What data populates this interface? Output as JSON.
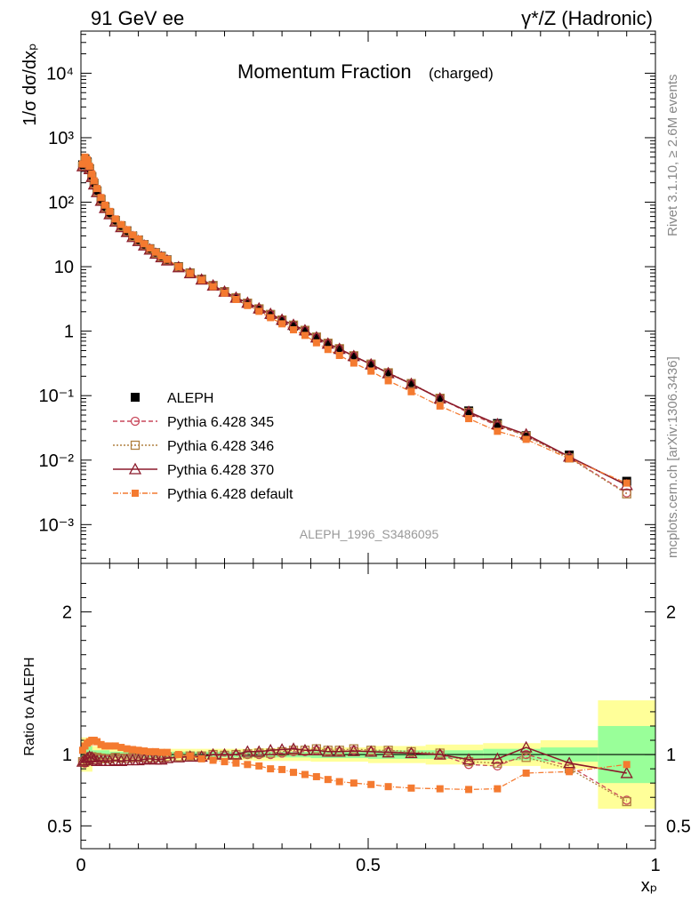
{
  "header": {
    "left": "91 GeV ee",
    "right": "γ*/Z (Hadronic)"
  },
  "side_labels": {
    "rivet": "Rivet 3.1.10, ≥ 2.6M events",
    "mcplots": "mcplots.cern.ch [arXiv:1306.3436]"
  },
  "chart_data": [
    {
      "type": "line",
      "title": "Momentum Fraction",
      "title_sub": "(charged)",
      "analysis_id": "ALEPH_1996_S3486095",
      "ylabel": "1/σ dσ/dx_p",
      "yscale": "log",
      "ylim": [
        0.00025,
        45000
      ],
      "xlim": [
        0,
        1
      ],
      "y_tick_labels": [
        "10⁻³",
        "10⁻²",
        "10⁻¹",
        "1",
        "10",
        "10²",
        "10³",
        "10⁴"
      ],
      "x": [
        0.003,
        0.007,
        0.011,
        0.015,
        0.019,
        0.023,
        0.028,
        0.035,
        0.042,
        0.05,
        0.06,
        0.07,
        0.08,
        0.09,
        0.1,
        0.11,
        0.12,
        0.13,
        0.14,
        0.15,
        0.17,
        0.19,
        0.21,
        0.23,
        0.25,
        0.27,
        0.29,
        0.31,
        0.33,
        0.35,
        0.37,
        0.39,
        0.41,
        0.43,
        0.45,
        0.475,
        0.505,
        0.535,
        0.575,
        0.625,
        0.675,
        0.725,
        0.775,
        0.85,
        0.95
      ],
      "series": [
        {
          "name": "ALEPH",
          "color": "#000000",
          "marker": "filled-square",
          "values": [
            380,
            470,
            420,
            330,
            250,
            195,
            150,
            110,
            85,
            68,
            52,
            43,
            36,
            30,
            26,
            22,
            19,
            16.5,
            14.5,
            12.8,
            10,
            8,
            6.4,
            5.1,
            4.1,
            3.3,
            2.7,
            2.2,
            1.8,
            1.45,
            1.2,
            1.0,
            0.78,
            0.63,
            0.52,
            0.4,
            0.3,
            0.22,
            0.15,
            0.09,
            0.058,
            0.037,
            0.024,
            0.012,
            0.0047
          ]
        },
        {
          "name": "Pythia 6.428 345",
          "color": "#c8475a",
          "marker": "open-circle",
          "dash": "5,3",
          "values": [
            360,
            440,
            400,
            320,
            245,
            190,
            146,
            107,
            82,
            66,
            51,
            42,
            35,
            29.3,
            25.3,
            21.4,
            18.5,
            16.1,
            14.1,
            12.5,
            9.8,
            7.9,
            6.3,
            5.05,
            4.05,
            3.27,
            2.7,
            2.2,
            1.8,
            1.47,
            1.22,
            1.02,
            0.8,
            0.64,
            0.53,
            0.41,
            0.305,
            0.224,
            0.152,
            0.09,
            0.054,
            0.034,
            0.024,
            0.011,
            0.0031
          ]
        },
        {
          "name": "Pythia 6.428 346",
          "color": "#b08040",
          "marker": "open-square",
          "dash": "2,2",
          "values": [
            360,
            445,
            405,
            322,
            246,
            191,
            147,
            107,
            82,
            66,
            51,
            42,
            35,
            29.4,
            25.4,
            21.5,
            18.6,
            16.2,
            14.2,
            12.6,
            9.85,
            7.95,
            6.35,
            5.08,
            4.08,
            3.3,
            2.72,
            2.22,
            1.82,
            1.49,
            1.24,
            1.03,
            0.81,
            0.65,
            0.535,
            0.415,
            0.308,
            0.226,
            0.154,
            0.091,
            0.055,
            0.035,
            0.0235,
            0.0108,
            0.003
          ]
        },
        {
          "name": "Pythia 6.428 370",
          "color": "#8b1a2b",
          "marker": "open-triangle",
          "dash": "",
          "values": [
            360,
            450,
            410,
            325,
            245,
            188,
            143,
            105,
            81,
            65,
            50,
            41,
            34.5,
            28.8,
            25,
            21.3,
            18.4,
            15.9,
            14,
            12.5,
            9.8,
            7.9,
            6.3,
            5.1,
            4.1,
            3.3,
            2.75,
            2.25,
            1.85,
            1.5,
            1.25,
            1.03,
            0.8,
            0.64,
            0.53,
            0.41,
            0.305,
            0.223,
            0.152,
            0.09,
            0.056,
            0.036,
            0.025,
            0.0113,
            0.0041
          ]
        },
        {
          "name": "Pythia 6.428 default",
          "color": "#f47a30",
          "marker": "filled-square-small",
          "dash": "6,2,1,2",
          "values": [
            390,
            500,
            455,
            360,
            275,
            214,
            163,
            118,
            90,
            72,
            55,
            45,
            37.5,
            31,
            26.8,
            22.6,
            19.4,
            16.8,
            14.7,
            13,
            10,
            7.9,
            6.2,
            4.9,
            3.9,
            3.1,
            2.5,
            2.03,
            1.62,
            1.3,
            1.05,
            0.86,
            0.66,
            0.52,
            0.42,
            0.32,
            0.24,
            0.17,
            0.115,
            0.069,
            0.044,
            0.028,
            0.021,
            0.0105,
            0.0044
          ]
        }
      ],
      "legend_position": "lower-left"
    },
    {
      "type": "line",
      "ylabel": "Ratio to ALEPH",
      "xlabel": "x_p",
      "xlim": [
        0,
        1
      ],
      "ylim": [
        0.34,
        2.34
      ],
      "x_tick_labels": [
        "0",
        "0.5",
        "1"
      ],
      "y_tick_labels": [
        "0.5",
        "1",
        "2"
      ],
      "reference_line": 1,
      "uncertainty_bands": {
        "green_color": "#99ff99",
        "yellow_color": "#ffff99",
        "x_edges": [
          0.0,
          0.02,
          0.05,
          0.1,
          0.2,
          0.3,
          0.4,
          0.5,
          0.6,
          0.7,
          0.8,
          0.9,
          1.0
        ],
        "green_half_width": [
          0.06,
          0.03,
          0.02,
          0.02,
          0.02,
          0.02,
          0.025,
          0.03,
          0.03,
          0.04,
          0.05,
          0.2
        ],
        "yellow_half_width": [
          0.12,
          0.06,
          0.04,
          0.04,
          0.04,
          0.045,
          0.05,
          0.06,
          0.07,
          0.08,
          0.1,
          0.38
        ]
      },
      "series": [
        {
          "name": "Pythia 6.428 345",
          "color": "#c8475a",
          "marker": "open-circle",
          "dash": "5,3",
          "values": [
            0.95,
            0.94,
            0.95,
            0.97,
            0.98,
            0.975,
            0.975,
            0.975,
            0.97,
            0.97,
            0.98,
            0.975,
            0.975,
            0.975,
            0.975,
            0.975,
            0.975,
            0.975,
            0.975,
            0.98,
            0.98,
            0.985,
            0.99,
            0.995,
            0.99,
            0.995,
            1.0,
            1.0,
            1.0,
            1.01,
            1.02,
            1.02,
            1.03,
            1.02,
            1.02,
            1.03,
            1.02,
            1.02,
            1.01,
            1.0,
            0.93,
            0.92,
            1.0,
            0.92,
            0.68
          ]
        },
        {
          "name": "Pythia 6.428 346",
          "color": "#b08040",
          "marker": "open-square",
          "dash": "2,2",
          "values": [
            0.95,
            0.95,
            0.965,
            0.975,
            0.985,
            0.98,
            0.98,
            0.975,
            0.97,
            0.97,
            0.98,
            0.975,
            0.975,
            0.98,
            0.98,
            0.98,
            0.98,
            0.98,
            0.98,
            0.985,
            0.985,
            0.99,
            0.99,
            1.0,
            0.995,
            1.0,
            1.005,
            1.01,
            1.01,
            1.02,
            1.03,
            1.03,
            1.04,
            1.03,
            1.03,
            1.04,
            1.03,
            1.03,
            1.02,
            1.01,
            0.95,
            0.94,
            0.98,
            0.9,
            0.67
          ]
        },
        {
          "name": "Pythia 6.428 370",
          "color": "#8b1a2b",
          "marker": "open-triangle",
          "dash": "",
          "values": [
            0.95,
            0.96,
            0.975,
            0.985,
            0.98,
            0.965,
            0.955,
            0.955,
            0.955,
            0.955,
            0.96,
            0.955,
            0.96,
            0.96,
            0.96,
            0.965,
            0.97,
            0.965,
            0.965,
            0.975,
            0.98,
            0.985,
            0.985,
            1.0,
            1.0,
            1.0,
            1.02,
            1.02,
            1.03,
            1.035,
            1.04,
            1.03,
            1.03,
            1.02,
            1.02,
            1.025,
            1.02,
            1.015,
            1.01,
            1.0,
            0.965,
            0.97,
            1.05,
            0.94,
            0.87
          ]
        },
        {
          "name": "Pythia 6.428 default",
          "color": "#f47a30",
          "marker": "filled-square-small",
          "dash": "6,2,1,2",
          "values": [
            1.03,
            1.06,
            1.08,
            1.09,
            1.1,
            1.1,
            1.09,
            1.07,
            1.06,
            1.06,
            1.06,
            1.05,
            1.04,
            1.035,
            1.03,
            1.025,
            1.02,
            1.02,
            1.015,
            1.015,
            1.0,
            0.99,
            0.97,
            0.96,
            0.95,
            0.94,
            0.93,
            0.92,
            0.9,
            0.895,
            0.875,
            0.86,
            0.845,
            0.825,
            0.81,
            0.8,
            0.79,
            0.775,
            0.765,
            0.76,
            0.755,
            0.76,
            0.87,
            0.88,
            0.93
          ]
        }
      ]
    }
  ]
}
